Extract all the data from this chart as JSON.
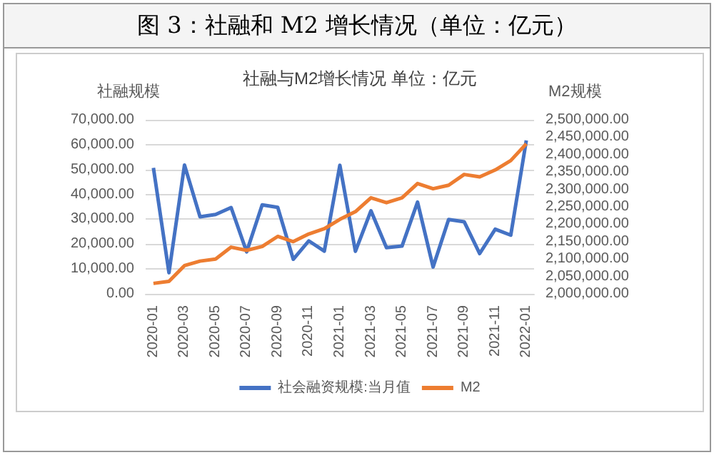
{
  "chart_data": {
    "type": "line",
    "title": "图 3：社融和 M2 增长情况（单位：亿元）",
    "subtitle": "社融与M2增长情况 单位：亿元",
    "ylabel": "社融规模",
    "y2label": "M2规模",
    "categories": [
      "2020-01",
      null,
      "2020-03",
      null,
      "2020-05",
      null,
      "2020-07",
      null,
      "2020-09",
      null,
      "2020-11",
      null,
      "2021-01",
      null,
      "2021-03",
      null,
      "2021-05",
      null,
      "2021-07",
      null,
      "2021-09",
      null,
      "2021-11",
      null,
      "2022-01"
    ],
    "series": [
      {
        "name": "社会融资规模:当月值",
        "color": "#4472c4",
        "values": [
          50700,
          8500,
          51800,
          31000,
          31900,
          34700,
          16900,
          35800,
          34800,
          13900,
          21300,
          17200,
          51700,
          17100,
          33400,
          18600,
          19200,
          36900,
          10800,
          29900,
          29000,
          16200,
          26000,
          23600,
          61700
        ]
      },
      {
        "name": "M2",
        "color": "#ed7d31",
        "axis": "y2",
        "values": [
          2030000,
          2036000,
          2081000,
          2094000,
          2100000,
          2134000,
          2125000,
          2136000,
          2165000,
          2150000,
          2172000,
          2187000,
          2214000,
          2236000,
          2276000,
          2262000,
          2276000,
          2317000,
          2302000,
          2312000,
          2343000,
          2336000,
          2356000,
          2383000,
          2431000
        ]
      }
    ],
    "ylim": [
      0,
      70000
    ],
    "yticks": [
      {
        "value": 0,
        "label": "0.00"
      },
      {
        "value": 10000,
        "label": "10,000.00"
      },
      {
        "value": 20000,
        "label": "20,000.00"
      },
      {
        "value": 30000,
        "label": "30,000.00"
      },
      {
        "value": 40000,
        "label": "40,000.00"
      },
      {
        "value": 50000,
        "label": "50,000.00"
      },
      {
        "value": 60000,
        "label": "60,000.00"
      },
      {
        "value": 70000,
        "label": "70,000.00"
      }
    ],
    "y2lim": [
      2000000,
      2500000
    ],
    "y2ticks": [
      {
        "value": 2000000,
        "label": "2,000,000.00"
      },
      {
        "value": 2050000,
        "label": "2,050,000.00"
      },
      {
        "value": 2100000,
        "label": "2,100,000.00"
      },
      {
        "value": 2150000,
        "label": "2,150,000.00"
      },
      {
        "value": 2200000,
        "label": "2,200,000.00"
      },
      {
        "value": 2250000,
        "label": "2,250,000.00"
      },
      {
        "value": 2300000,
        "label": "2,300,000.00"
      },
      {
        "value": 2350000,
        "label": "2,350,000.00"
      },
      {
        "value": 2400000,
        "label": "2,400,000.00"
      },
      {
        "value": 2450000,
        "label": "2,450,000.00"
      },
      {
        "value": 2500000,
        "label": "2,500,000.00"
      }
    ],
    "grid": "y",
    "legend": "bottom",
    "marker": "none",
    "line_style": "solid"
  }
}
